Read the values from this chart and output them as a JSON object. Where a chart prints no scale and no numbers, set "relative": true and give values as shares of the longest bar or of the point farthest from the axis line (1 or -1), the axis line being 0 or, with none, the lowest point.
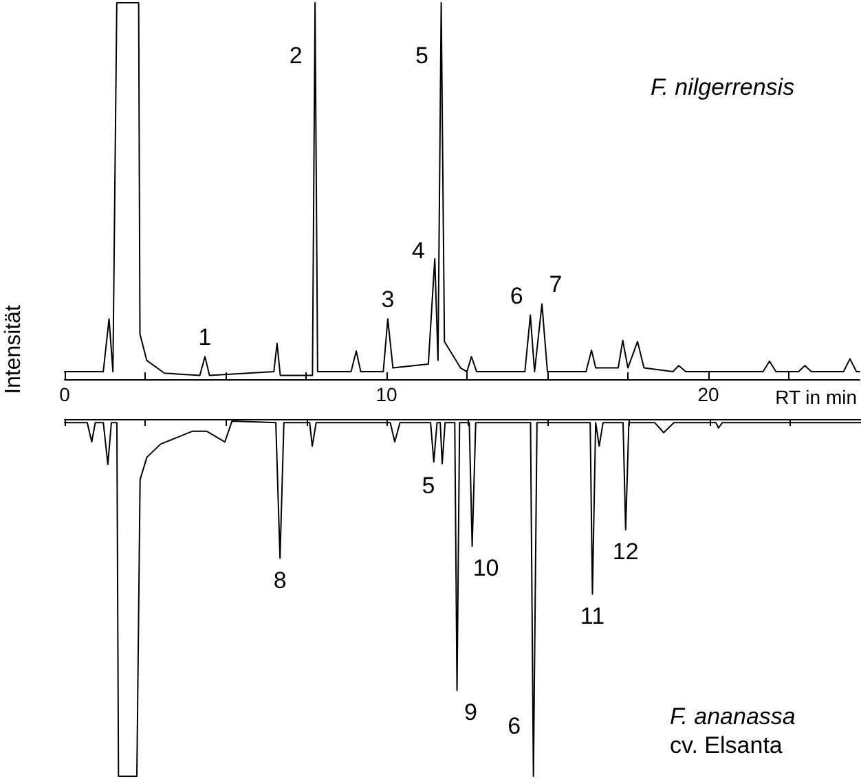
{
  "chart_data": [
    {
      "type": "line",
      "title": "F. nilgerrensis",
      "xlabel": "RT in min",
      "ylabel": "Intensität",
      "relative": true,
      "color": "#000000",
      "x": [
        0,
        1.2,
        1.38,
        1.5,
        1.62,
        1.7,
        2.3,
        2.34,
        2.55,
        3.1,
        4.2,
        4.36,
        4.5,
        6.5,
        6.6,
        6.7,
        7.7,
        7.78,
        7.86,
        8.9,
        9.06,
        9.2,
        9.9,
        10.04,
        10.2,
        11.3,
        11.5,
        11.6,
        11.7,
        11.8,
        12.3,
        12.5,
        12.64,
        12.8,
        14.3,
        14.47,
        14.6,
        14.83,
        15.0,
        16.2,
        16.37,
        16.5,
        17.2,
        17.34,
        17.5,
        17.8,
        18.0,
        18.9,
        19.08,
        19.3,
        21.7,
        21.9,
        22.1,
        22.8,
        23.0,
        23.2,
        24.2,
        24.4,
        24.6,
        24.7
      ],
      "values": [
        0.02,
        0.02,
        0.16,
        0.02,
        1,
        1,
        1,
        0.12,
        0.05,
        0.016,
        0.01,
        0.06,
        0.01,
        0.02,
        0.095,
        0.01,
        0.01,
        1,
        0.02,
        0.02,
        0.075,
        0.02,
        0.02,
        0.16,
        0.03,
        0.04,
        0.32,
        0.05,
        1,
        0.1,
        0.03,
        0.02,
        0.06,
        0.02,
        0.02,
        0.17,
        0.02,
        0.2,
        0.02,
        0.02,
        0.077,
        0.03,
        0.03,
        0.103,
        0.03,
        0.1,
        0.03,
        0.02,
        0.036,
        0.02,
        0.02,
        0.048,
        0.02,
        0.02,
        0.036,
        0.02,
        0.02,
        0.054,
        0.02,
        0.02
      ],
      "xlim": [
        0,
        24.7
      ],
      "xticks": [
        0,
        {
          "value": 2.5,
          "label": null
        },
        {
          "value": 5,
          "label": null
        },
        {
          "value": 7.5,
          "label": null
        },
        10,
        {
          "value": 12.5,
          "label": null
        },
        {
          "value": 15,
          "label": null
        },
        {
          "value": 17.5,
          "label": null
        },
        20,
        {
          "value": 22.5,
          "label": null
        }
      ],
      "annotations": [
        {
          "text": "1",
          "x": 4.36,
          "y": 0.06
        },
        {
          "text": "2",
          "x": 7.78,
          "y": 1
        },
        {
          "text": "3",
          "x": 10.04,
          "y": 0.16
        },
        {
          "text": "4",
          "x": 11.5,
          "y": 0.32
        },
        {
          "text": "5",
          "x": 11.7,
          "y": 1
        },
        {
          "text": "6",
          "x": 14.47,
          "y": 0.17
        },
        {
          "text": "7",
          "x": 14.83,
          "y": 0.2
        }
      ]
    },
    {
      "type": "line",
      "title": "F. ananassa",
      "subtitle": "cv. Elsanta",
      "relative": true,
      "color": "#000000",
      "tick_labels": false,
      "x": [
        0,
        0.7,
        0.84,
        0.95,
        1.2,
        1.34,
        1.45,
        1.62,
        1.67,
        2.24,
        2.34,
        2.55,
        2.98,
        3.97,
        4.4,
        4.97,
        5.19,
        6.55,
        6.68,
        6.8,
        7.6,
        7.68,
        7.8,
        10.1,
        10.24,
        10.4,
        11.35,
        11.45,
        11.55,
        11.65,
        11.71,
        11.8,
        12.1,
        12.17,
        12.25,
        12.55,
        12.64,
        12.75,
        14.45,
        14.54,
        14.65,
        16.3,
        16.37,
        16.47,
        16.58,
        16.7,
        17.32,
        17.4,
        17.5,
        18.3,
        18.58,
        18.9,
        20.2,
        20.28,
        20.4,
        24.7
      ],
      "values": [
        -0.01,
        -0.01,
        -0.064,
        -0.01,
        -0.01,
        -0.127,
        -0.01,
        -0.01,
        -1,
        -1,
        -0.17,
        -0.107,
        -0.07,
        -0.034,
        -0.034,
        -0.064,
        -0.006,
        -0.01,
        -0.39,
        -0.01,
        -0.01,
        -0.076,
        -0.01,
        -0.01,
        -0.064,
        -0.01,
        -0.01,
        -0.12,
        -0.01,
        -0.01,
        -0.125,
        -0.01,
        -0.01,
        -0.76,
        -0.01,
        -0.01,
        -0.356,
        -0.01,
        -0.01,
        -1,
        -0.01,
        -0.01,
        -0.49,
        -0.01,
        -0.076,
        -0.01,
        -0.01,
        -0.31,
        -0.01,
        -0.01,
        -0.038,
        -0.01,
        -0.01,
        -0.025,
        -0.01,
        -0.01
      ],
      "xlim": [
        0,
        24.7
      ],
      "xticks": [
        0,
        {
          "value": 2.5,
          "label": null
        },
        {
          "value": 5,
          "label": null
        },
        {
          "value": 7.5,
          "label": null
        },
        10,
        {
          "value": 12.5,
          "label": null
        },
        {
          "value": 15,
          "label": null
        },
        {
          "value": 17.5,
          "label": null
        },
        20,
        {
          "value": 22.5,
          "label": null
        }
      ],
      "annotations": [
        {
          "text": "8",
          "x": 6.68,
          "y": -0.39
        },
        {
          "text": "5",
          "x": 11.71,
          "y": -0.125
        },
        {
          "text": "9",
          "x": 12.17,
          "y": -0.76
        },
        {
          "text": "10",
          "x": 12.64,
          "y": -0.356
        },
        {
          "text": "6",
          "x": 14.54,
          "y": -1
        },
        {
          "text": "11",
          "x": 16.37,
          "y": -0.49
        },
        {
          "text": "12",
          "x": 17.4,
          "y": -0.31
        }
      ]
    }
  ]
}
